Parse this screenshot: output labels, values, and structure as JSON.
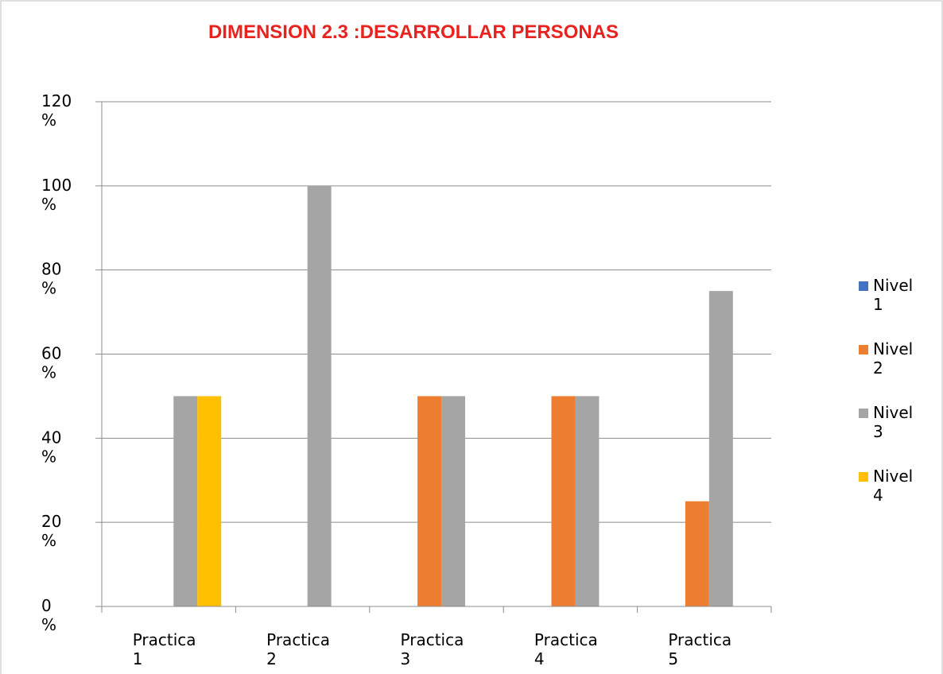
{
  "chart_data": {
    "type": "bar",
    "title": "DIMENSION 2.3 :DESARROLLAR PERSONAS",
    "categories": [
      "Practica 1",
      "Practica 2",
      "Practica 3",
      "Practica 4",
      "Practica 5"
    ],
    "series": [
      {
        "name": "Nivel 1",
        "color": "#4472c4",
        "values": [
          0,
          0,
          0,
          0,
          0
        ]
      },
      {
        "name": "Nivel 2",
        "color": "#ed7d31",
        "values": [
          0,
          0,
          50,
          50,
          25
        ]
      },
      {
        "name": "Nivel 3",
        "color": "#a5a5a5",
        "values": [
          50,
          100,
          50,
          50,
          75
        ]
      },
      {
        "name": "Nivel 4",
        "color": "#ffc000",
        "values": [
          50,
          0,
          0,
          0,
          0
        ]
      }
    ],
    "ylim": [
      0,
      120
    ],
    "yticks": [
      {
        "value": 0,
        "label": "0 %"
      },
      {
        "value": 20,
        "label": "20 %"
      },
      {
        "value": 40,
        "label": "40 %"
      },
      {
        "value": 60,
        "label": "60 %"
      },
      {
        "value": 80,
        "label": "80 %"
      },
      {
        "value": 100,
        "label": "100 %"
      },
      {
        "value": 120,
        "label": "120 %"
      }
    ],
    "grid": true,
    "legend": "right"
  }
}
